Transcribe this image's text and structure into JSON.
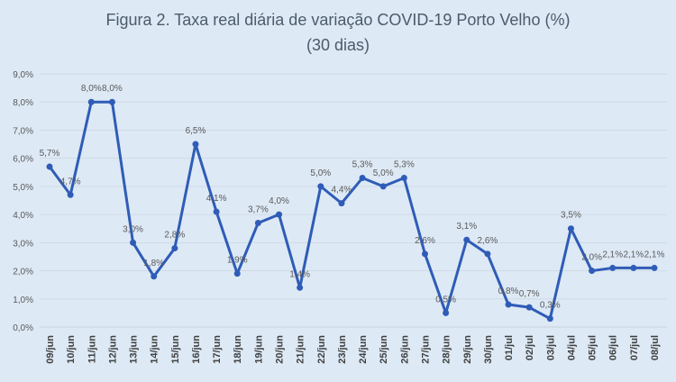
{
  "chart_data": {
    "type": "line",
    "title": "Figura 2. Taxa real diária de variação COVID-19 Porto Velho (%)",
    "subtitle": "(30 dias)",
    "xlabel": "",
    "ylabel": "",
    "ylim": [
      0,
      9
    ],
    "yticks": [
      "0,0%",
      "1,0%",
      "2,0%",
      "3,0%",
      "4,0%",
      "5,0%",
      "6,0%",
      "7,0%",
      "8,0%",
      "9,0%"
    ],
    "grid": true,
    "line_color": "#2f5cb7",
    "categories": [
      "09/jun",
      "10/jun",
      "11/jun",
      "12/jun",
      "13/jun",
      "14/jun",
      "15/jun",
      "16/jun",
      "17/jun",
      "18/jun",
      "19/jun",
      "20/jun",
      "21/jun",
      "22/jun",
      "23/jun",
      "24/jun",
      "25/jun",
      "26/jun",
      "27/jun",
      "28/jun",
      "29/jun",
      "30/jun",
      "01/jul",
      "02/jul",
      "03/jul",
      "04/jul",
      "05/jul",
      "06/jul",
      "07/jul",
      "08/jul"
    ],
    "values": [
      5.7,
      4.7,
      8.0,
      8.0,
      3.0,
      1.8,
      2.8,
      6.5,
      4.1,
      1.9,
      3.7,
      4.0,
      1.4,
      5.0,
      4.4,
      5.3,
      5.0,
      5.3,
      2.6,
      0.5,
      3.1,
      2.6,
      0.8,
      0.7,
      0.3,
      3.5,
      2.0,
      2.1,
      2.1,
      2.1
    ],
    "data_labels": [
      "5,7%",
      "4,7%",
      "8,0%",
      "8,0%",
      "3,0%",
      "1,8%",
      "2,8%",
      "6,5%",
      "4,1%",
      "1,9%",
      "3,7%",
      "4,0%",
      "1,4%",
      "5,0%",
      "4,4%",
      "5,3%",
      "5,0%",
      "5,3%",
      "2,6%",
      "0,5%",
      "3,1%",
      "2,6%",
      "0,8%",
      "0,7%",
      "0,3%",
      "3,5%",
      "2,0%",
      "2,1%",
      "2,1%",
      "2,1%"
    ]
  }
}
